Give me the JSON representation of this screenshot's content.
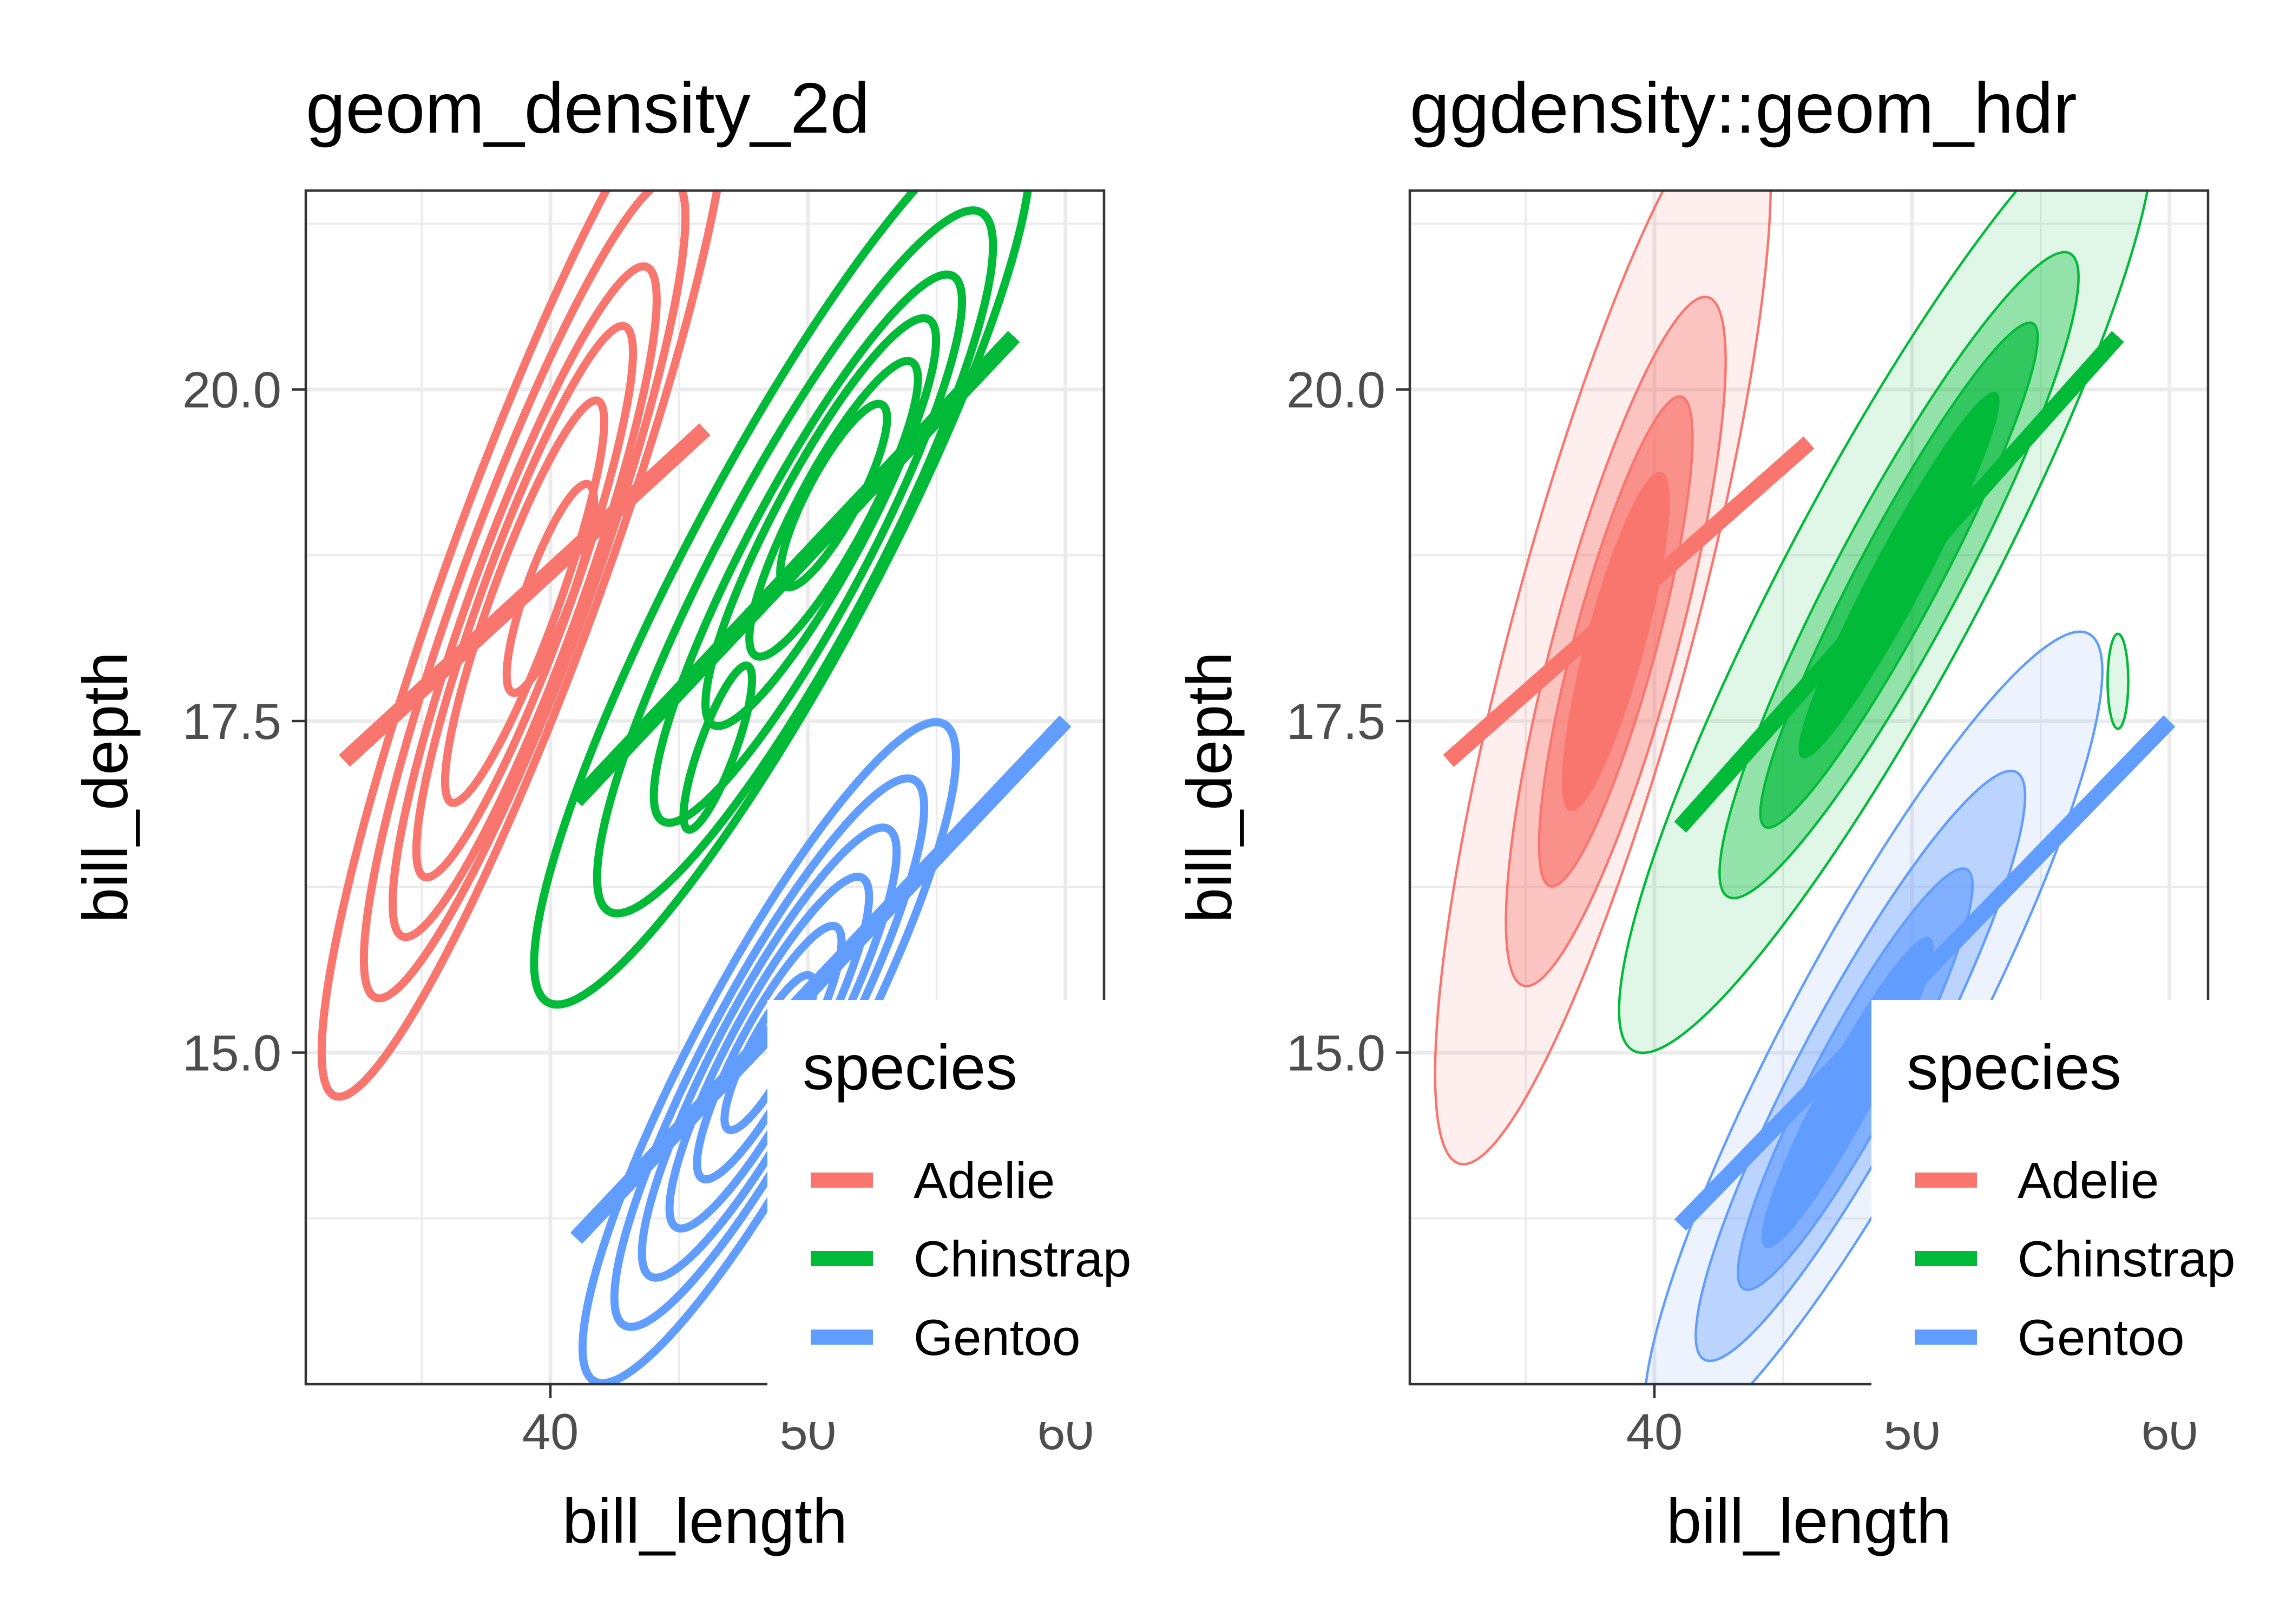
{
  "chart_data": [
    {
      "type": "density_2d_contour",
      "title": "geom_density_2d",
      "xlabel": "bill_length",
      "ylabel": "bill_depth",
      "xlim": [
        30.5,
        61.5
      ],
      "ylim": [
        12.5,
        21.5
      ],
      "xticks": [
        40,
        50,
        60
      ],
      "yticks": [
        15.0,
        17.5,
        20.0
      ],
      "ytick_labels": [
        "15.0",
        "17.5",
        "20.0"
      ],
      "grid": true,
      "legend": {
        "title": "species",
        "placement": "bottom-right",
        "entries": [
          "Adelie",
          "Chinstrap",
          "Gentoo"
        ]
      },
      "series": [
        {
          "name": "Adelie",
          "color": "#F8766D",
          "fit_line": [
            [
              32,
              17.2
            ],
            [
              46,
              19.7
            ]
          ],
          "contours": [
            {
              "cx": 39,
              "cy": 18.6,
              "rx": 7.0,
              "ry": 3.0,
              "rot": -70
            },
            {
              "cx": 39,
              "cy": 18.5,
              "rx": 5.5,
              "ry": 2.5,
              "rot": -70
            },
            {
              "cx": 39,
              "cy": 18.4,
              "rx": 4.5,
              "ry": 2.1,
              "rot": -70
            },
            {
              "cx": 39,
              "cy": 18.4,
              "rx": 3.7,
              "ry": 1.7,
              "rot": -70
            },
            {
              "cx": 39,
              "cy": 18.4,
              "rx": 2.7,
              "ry": 1.3,
              "rot": -70
            },
            {
              "cx": 40,
              "cy": 18.5,
              "rx": 1.4,
              "ry": 0.9,
              "rot": -70
            }
          ]
        },
        {
          "name": "Chinstrap",
          "color": "#00BA38",
          "fit_line": [
            [
              41,
              16.9
            ],
            [
              58,
              20.4
            ]
          ],
          "contours": [
            {
              "cx": 49,
              "cy": 18.7,
              "rx": 6.3,
              "ry": 3.6,
              "rot": -62
            },
            {
              "cx": 49.5,
              "cy": 18.7,
              "rx": 5.0,
              "ry": 3.0,
              "rot": -62
            },
            {
              "cx": 50,
              "cy": 18.8,
              "rx": 3.9,
              "ry": 2.3,
              "rot": -62
            },
            {
              "cx": 50.5,
              "cy": 19.0,
              "rx": 2.9,
              "ry": 1.8,
              "rot": -62
            },
            {
              "cx": 51,
              "cy": 19.1,
              "rx": 2.1,
              "ry": 1.4,
              "rot": -62
            },
            {
              "cx": 51,
              "cy": 19.2,
              "rx": 1.3,
              "ry": 1.0,
              "rot": -62
            },
            {
              "cx": 46.5,
              "cy": 17.3,
              "rx": 1.1,
              "ry": 0.7,
              "rot": -70
            }
          ]
        },
        {
          "name": "Gentoo",
          "color": "#619CFF",
          "fit_line": [
            [
              41,
              13.6
            ],
            [
              60,
              17.5
            ]
          ],
          "contours": [
            {
              "cx": 48.5,
              "cy": 15.0,
              "rx": 4.7,
              "ry": 2.9,
              "rot": -62
            },
            {
              "cx": 48.5,
              "cy": 15.0,
              "rx": 3.9,
              "ry": 2.4,
              "rot": -62
            },
            {
              "cx": 48.5,
              "cy": 15.0,
              "rx": 3.2,
              "ry": 2.0,
              "rot": -62
            },
            {
              "cx": 48.5,
              "cy": 15.0,
              "rx": 2.5,
              "ry": 1.6,
              "rot": -62
            },
            {
              "cx": 48.5,
              "cy": 15.0,
              "rx": 1.8,
              "ry": 1.2,
              "rot": -62
            },
            {
              "cx": 48.5,
              "cy": 15.0,
              "rx": 1.1,
              "ry": 0.8,
              "rot": -62
            }
          ]
        }
      ]
    },
    {
      "type": "hdr_density",
      "title": "ggdensity::geom_hdr",
      "xlabel": "bill_length",
      "ylabel": "bill_depth",
      "xlim": [
        30.5,
        61.5
      ],
      "ylim": [
        12.5,
        21.5
      ],
      "xticks": [
        40,
        50,
        60
      ],
      "yticks": [
        15.0,
        17.5,
        20.0
      ],
      "ytick_labels": [
        "15.0",
        "17.5",
        "20.0"
      ],
      "grid": true,
      "legend": {
        "title": "species",
        "placement": "bottom-right",
        "entries": [
          "Adelie",
          "Chinstrap",
          "Gentoo"
        ]
      },
      "hdr_levels": [
        {
          "opacity": 0.12
        },
        {
          "opacity": 0.35
        },
        {
          "opacity": 0.65
        },
        {
          "opacity": 1.0
        }
      ],
      "series": [
        {
          "name": "Adelie",
          "color": "#F8766D",
          "fit_line": [
            [
              32,
              17.2
            ],
            [
              46,
              19.6
            ]
          ],
          "regions": [
            {
              "cx": 38,
              "cy": 18.2,
              "rx": 7.0,
              "ry": 3.5,
              "rot": -75
            },
            {
              "cx": 38.5,
              "cy": 18.1,
              "rx": 4.5,
              "ry": 2.4,
              "rot": -75
            },
            {
              "cx": 38.5,
              "cy": 18.1,
              "rx": 3.2,
              "ry": 1.6,
              "rot": -75
            },
            {
              "cx": 38.5,
              "cy": 18.1,
              "rx": 2.2,
              "ry": 1.1,
              "rot": -75
            }
          ]
        },
        {
          "name": "Chinstrap",
          "color": "#00BA38",
          "fit_line": [
            [
              41,
              16.7
            ],
            [
              58,
              20.4
            ]
          ],
          "regions": [
            {
              "cx": 49,
              "cy": 18.6,
              "rx": 6.8,
              "ry": 3.8,
              "rot": -62
            },
            {
              "cx": 49.5,
              "cy": 18.6,
              "rx": 4.6,
              "ry": 2.4,
              "rot": -62
            },
            {
              "cx": 49.5,
              "cy": 18.6,
              "rx": 3.6,
              "ry": 1.6,
              "rot": -62
            },
            {
              "cx": 49.5,
              "cy": 18.6,
              "rx": 2.6,
              "ry": 1.0,
              "rot": -62
            },
            {
              "cx": 58,
              "cy": 17.8,
              "rx": 0.6,
              "ry": 0.4,
              "rot": -90,
              "opacity": 0.12
            }
          ]
        },
        {
          "name": "Gentoo",
          "color": "#619CFF",
          "fit_line": [
            [
              41,
              13.7
            ],
            [
              60,
              17.5
            ]
          ],
          "regions": [
            {
              "cx": 48.5,
              "cy": 15.1,
              "rx": 5.8,
              "ry": 3.4,
              "rot": -62
            },
            {
              "cx": 48,
              "cy": 14.9,
              "rx": 4.2,
              "ry": 2.3,
              "rot": -62
            },
            {
              "cx": 47.8,
              "cy": 14.8,
              "rx": 3.0,
              "ry": 1.6,
              "rot": -62
            },
            {
              "cx": 47.5,
              "cy": 14.7,
              "rx": 2.2,
              "ry": 1.0,
              "rot": -62
            }
          ]
        }
      ]
    }
  ]
}
